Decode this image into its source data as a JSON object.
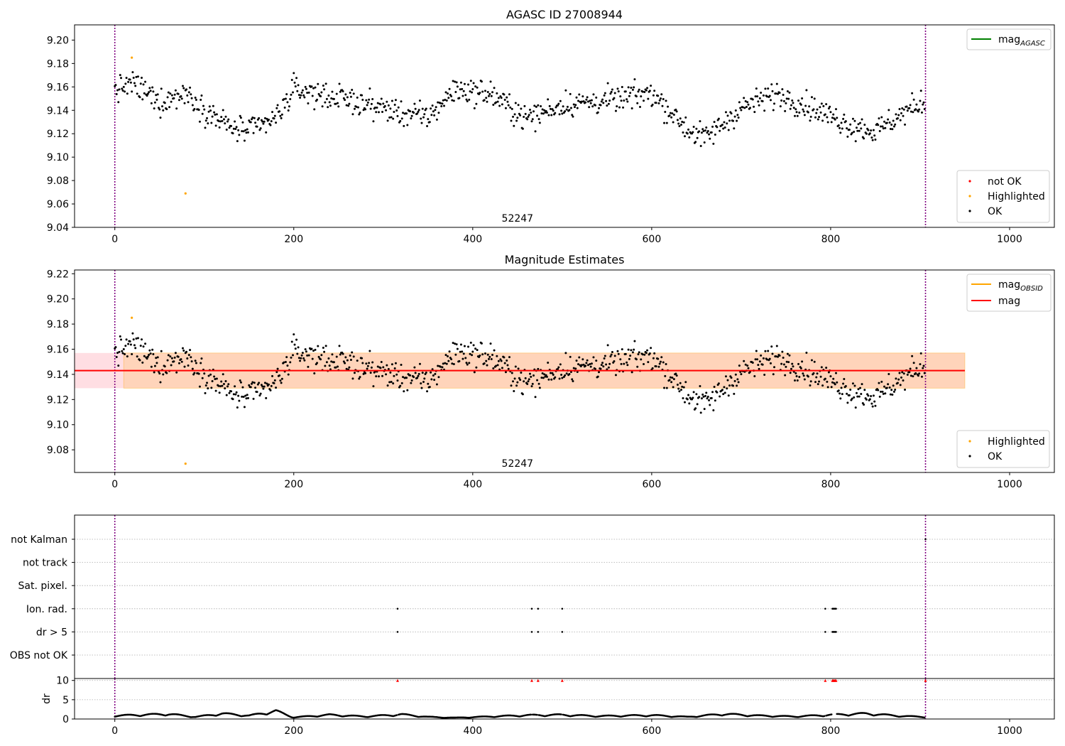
{
  "chart_data": [
    {
      "type": "scatter",
      "title": "AGASC ID 27008944",
      "annotation": "52247",
      "xlim": [
        -45,
        1050
      ],
      "ylim": [
        9.04,
        9.213
      ],
      "x_ticks": [
        0,
        200,
        400,
        600,
        800,
        1000
      ],
      "y_ticks": [
        "9.04",
        "9.06",
        "9.08",
        "9.10",
        "9.12",
        "9.14",
        "9.16",
        "9.18",
        "9.20"
      ],
      "grid": false,
      "vlines": [
        0,
        906
      ],
      "line_legend": {
        "position": "top-right",
        "entries": [
          {
            "label": "mag",
            "sub": "AGASC",
            "color": "#008000"
          }
        ]
      },
      "marker_legend": {
        "position": "lower-right",
        "entries": [
          {
            "label": "not OK",
            "color": "#ff0000"
          },
          {
            "label": "Highlighted",
            "color": "#ffa500"
          },
          {
            "label": "OK",
            "color": "#000000"
          }
        ]
      },
      "highlighted_points": [
        {
          "x": 19,
          "y": 9.185
        },
        {
          "x": 79,
          "y": 9.069
        }
      ],
      "ok_series_profile": {
        "description": "approximate running mean of OK points vs sample index",
        "x": [
          0,
          20,
          50,
          80,
          100,
          130,
          150,
          180,
          200,
          260,
          320,
          350,
          380,
          420,
          460,
          500,
          560,
          600,
          640,
          660,
          700,
          740,
          780,
          820,
          850,
          880,
          906
        ],
        "y": [
          9.157,
          9.163,
          9.147,
          9.155,
          9.141,
          9.125,
          9.122,
          9.133,
          9.158,
          9.149,
          9.138,
          9.134,
          9.158,
          9.154,
          9.133,
          9.145,
          9.149,
          9.155,
          9.124,
          9.116,
          9.142,
          9.154,
          9.142,
          9.128,
          9.122,
          9.137,
          9.148
        ],
        "n_points": 906,
        "scatter": 0.009
      }
    },
    {
      "type": "scatter",
      "title": "Magnitude Estimates",
      "annotation": "52247",
      "xlim": [
        -45,
        1050
      ],
      "ylim": [
        9.062,
        9.223
      ],
      "x_ticks": [
        0,
        200,
        400,
        600,
        800,
        1000
      ],
      "y_ticks": [
        "9.08",
        "9.10",
        "9.12",
        "9.14",
        "9.16",
        "9.18",
        "9.20",
        "9.22"
      ],
      "grid": false,
      "vlines": [
        0,
        906
      ],
      "mag_line": {
        "y": 9.143,
        "x_range": [
          -45,
          950
        ],
        "color": "#ff0000"
      },
      "mag_band": {
        "lower": 9.129,
        "upper": 9.157,
        "x_range": [
          -45,
          950
        ],
        "color": "#ffb6c1"
      },
      "obsid_band": {
        "lower": 9.129,
        "upper": 9.157,
        "x_range": [
          10,
          950
        ],
        "color": "#ffa500"
      },
      "line_legend": {
        "position": "top-right",
        "entries": [
          {
            "label": "mag",
            "sub": "OBSID",
            "color": "#ffa500"
          },
          {
            "label": "mag",
            "sub": "",
            "color": "#ff0000"
          }
        ]
      },
      "marker_legend": {
        "position": "lower-right",
        "entries": [
          {
            "label": "Highlighted",
            "color": "#ffa500"
          },
          {
            "label": "OK",
            "color": "#000000"
          }
        ]
      },
      "highlighted_points": [
        {
          "x": 19,
          "y": 9.185
        },
        {
          "x": 79,
          "y": 9.069
        }
      ]
    },
    {
      "type": "scatter",
      "title": "",
      "xlim": [
        -45,
        1050
      ],
      "x_ticks": [
        0,
        200,
        400,
        600,
        800,
        1000
      ],
      "vlines": [
        0,
        906
      ],
      "flag_rows": [
        "not Kalman",
        "not track",
        "Sat. pixel.",
        "Ion. rad.",
        "dr > 5",
        "OBS not OK"
      ],
      "flag_points": [
        {
          "row": "Ion. rad.",
          "x": [
            316,
            466,
            473,
            500,
            794,
            802,
            803,
            804,
            805,
            806
          ]
        },
        {
          "row": "dr > 5",
          "x": [
            316,
            466,
            473,
            500,
            794,
            802,
            803,
            804,
            805,
            806
          ]
        },
        {
          "row": "not Kalman",
          "x": [
            906
          ]
        }
      ],
      "dr_panel": {
        "ylabel": "dr",
        "ylim": [
          0,
          10.5
        ],
        "y_ticks": [
          "0",
          "5",
          "10"
        ],
        "dr_profile": {
          "x": [
            0,
            60,
            90,
            120,
            150,
            180,
            200,
            240,
            280,
            320,
            350,
            380,
            420,
            460,
            500,
            540,
            600,
            640,
            680,
            720,
            760,
            800,
            840,
            880,
            906
          ],
          "y": [
            0.8,
            1.2,
            0.5,
            1.3,
            0.8,
            1.9,
            0.4,
            1.0,
            0.6,
            1.1,
            0.5,
            0.3,
            0.6,
            0.9,
            1.0,
            0.7,
            0.9,
            0.5,
            1.2,
            0.8,
            0.6,
            1.0,
            1.3,
            0.7,
            0.5
          ],
          "n_points": 906
        },
        "clipped_points_at_10": [
          316,
          466,
          473,
          500,
          794,
          802,
          803,
          804,
          805,
          806,
          906
        ],
        "clipped_color": "#ff0000"
      }
    }
  ]
}
